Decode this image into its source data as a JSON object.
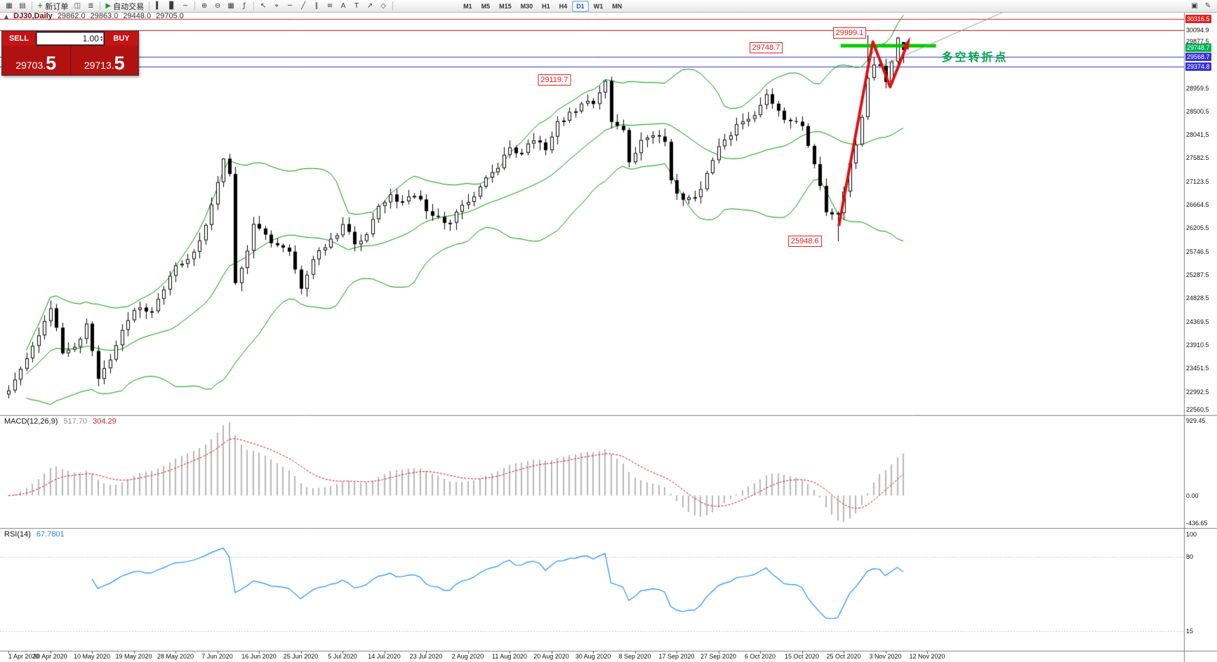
{
  "toolbar": {
    "groups": [
      {
        "name": "chart-group",
        "buttons": [
          {
            "name": "new-chart-icon",
            "glyph": "▦"
          },
          {
            "name": "chart-profiles-icon",
            "glyph": "▤"
          }
        ]
      },
      {
        "name": "order-group",
        "buttons": [
          {
            "name": "new-order-button",
            "glyph": "+",
            "glyph_color": "#1f9d1f",
            "label": "新订单"
          },
          {
            "name": "terminal-icon",
            "glyph": "◫"
          },
          {
            "name": "strategy-tester-icon",
            "glyph": "≣"
          }
        ]
      },
      {
        "name": "autotrade-group",
        "buttons": [
          {
            "name": "autotrading-button",
            "glyph": "▶",
            "glyph_color": "#1f9d1f",
            "label": "自动交易"
          }
        ]
      },
      {
        "name": "chart-type-group",
        "buttons": [
          {
            "name": "bar-chart-icon",
            "glyph": "▍"
          },
          {
            "name": "candlestick-chart-icon",
            "glyph": "▊"
          },
          {
            "name": "line-chart-icon",
            "glyph": "~"
          }
        ]
      },
      {
        "name": "zoom-group",
        "buttons": [
          {
            "name": "zoom-in-icon",
            "glyph": "⊕"
          },
          {
            "name": "zoom-out-icon",
            "glyph": "⊖"
          },
          {
            "name": "tile-windows-icon",
            "glyph": "▦"
          },
          {
            "name": "indicators-icon",
            "glyph": "ƒ"
          }
        ]
      },
      {
        "name": "drawing-group",
        "buttons": [
          {
            "name": "cursor-icon",
            "glyph": "↖"
          },
          {
            "name": "crosshair-icon",
            "glyph": "⌖"
          },
          {
            "name": "horizontal-line-icon",
            "glyph": "─"
          },
          {
            "name": "trendline-icon",
            "glyph": "╱"
          },
          {
            "name": "channel-icon",
            "glyph": "∥"
          },
          {
            "name": "fibonacci-icon",
            "glyph": "≡"
          },
          {
            "name": "text-icon",
            "glyph": "A"
          },
          {
            "name": "label-icon",
            "glyph": "T"
          },
          {
            "name": "arrow-tool-icon",
            "glyph": "↗"
          },
          {
            "name": "shapes-icon",
            "glyph": "◇"
          }
        ]
      }
    ],
    "timeframes": {
      "items": [
        "M1",
        "M5",
        "M15",
        "M30",
        "H1",
        "H4",
        "D1",
        "W1",
        "MN"
      ],
      "active": "D1"
    },
    "right_buttons": [
      {
        "name": "docking-icon",
        "glyph": "▣"
      },
      {
        "name": "edit-cursor-icon",
        "glyph": "✎"
      }
    ]
  },
  "chart_header": {
    "marker": "▲",
    "symbol": "DJ30,Daily",
    "open": "29862.0",
    "high": "29863.0",
    "low": "29448.0",
    "close": "29705.0"
  },
  "one_click": {
    "sell_label": "SELL",
    "buy_label": "BUY",
    "volume": "1.00",
    "up_glyph": "▴",
    "down_glyph": "▾",
    "sell_price_main": "29703.",
    "sell_price_big": "5",
    "buy_price_main": "29713.",
    "buy_price_big": "5"
  },
  "indicators": {
    "macd": {
      "name": "MACD(12,26,9)",
      "main_value": "517.70",
      "signal_value": "304.29",
      "axis_labels": [
        {
          "text": "929.45",
          "pos": "top"
        },
        {
          "text": "0.00",
          "pos": "zero"
        },
        {
          "text": "-436.65",
          "pos": "bottom"
        }
      ]
    },
    "rsi": {
      "name": "RSI(14)",
      "value": "67.7801",
      "axis_labels": [
        {
          "text": "100",
          "value": 100
        },
        {
          "text": "80",
          "value": 80
        },
        {
          "text": "15",
          "value": 15
        }
      ],
      "levels": [
        80,
        15
      ]
    }
  },
  "chart_data": {
    "type": "candlestick",
    "symbol": "DJ30",
    "timeframe": "Daily",
    "last_ohlc": {
      "open": 29862.0,
      "high": 29863.0,
      "low": 29448.0,
      "close": 29705.0
    },
    "price_axis": {
      "min": 22560.5,
      "max": 30316.5
    },
    "y_ticks": [
      {
        "text": "30316.5",
        "price": 30316.5,
        "type": "red"
      },
      {
        "text": "30094.9",
        "price": 30094.9,
        "type": "plain"
      },
      {
        "text": "29877.5",
        "price": 29877.5,
        "type": "plain"
      },
      {
        "text": "29748.7",
        "price": 29748.7,
        "type": "green"
      },
      {
        "text": "29568.7",
        "price": 29568.7,
        "type": "blue"
      },
      {
        "text": "29374.8",
        "price": 29374.8,
        "type": "blue"
      },
      {
        "text": "28959.5",
        "price": 28959.5,
        "type": "plain"
      },
      {
        "text": "28500.5",
        "price": 28500.5,
        "type": "plain"
      },
      {
        "text": "28041.5",
        "price": 28041.5,
        "type": "plain"
      },
      {
        "text": "27582.5",
        "price": 27582.5,
        "type": "plain"
      },
      {
        "text": "27123.5",
        "price": 27123.5,
        "type": "plain"
      },
      {
        "text": "26664.5",
        "price": 26664.5,
        "type": "plain"
      },
      {
        "text": "26205.5",
        "price": 26205.5,
        "type": "plain"
      },
      {
        "text": "25746.5",
        "price": 25746.5,
        "type": "plain"
      },
      {
        "text": "25287.5",
        "price": 25287.5,
        "type": "plain"
      },
      {
        "text": "24828.5",
        "price": 24828.5,
        "type": "plain"
      },
      {
        "text": "24369.5",
        "price": 24369.5,
        "type": "plain"
      },
      {
        "text": "23910.5",
        "price": 23910.5,
        "type": "plain"
      },
      {
        "text": "23451.5",
        "price": 23451.5,
        "type": "plain"
      },
      {
        "text": "22992.5",
        "price": 22992.5,
        "type": "plain"
      },
      {
        "text": "22560.5",
        "price": 22560.5,
        "type": "plain"
      }
    ],
    "x_ticks": [
      "1 Apr 2020",
      "30 Apr 2020",
      "10 May 2020",
      "19 May 2020",
      "28 May 2020",
      "7 Jun 2020",
      "16 Jun 2020",
      "25 Jun 2020",
      "5 Jul 2020",
      "14 Jul 2020",
      "23 Jul 2020",
      "2 Aug 2020",
      "11 Aug 2020",
      "20 Aug 2020",
      "30 Aug 2020",
      "8 Sep 2020",
      "17 Sep 2020",
      "27 Sep 2020",
      "6 Oct 2020",
      "15 Oct 2020",
      "25 Oct 2020",
      "3 Nov 2020",
      "12 Nov 2020"
    ],
    "bars_per_x_tick": 7,
    "seed": 11,
    "anchors": [
      [
        0,
        23019
      ],
      [
        3,
        23650
      ],
      [
        5,
        24100
      ],
      [
        7,
        24633
      ],
      [
        9,
        23750
      ],
      [
        11,
        23875
      ],
      [
        13,
        24331
      ],
      [
        15,
        23247
      ],
      [
        17,
        23625
      ],
      [
        19,
        24206
      ],
      [
        21,
        24597
      ],
      [
        24,
        24575
      ],
      [
        26,
        25001
      ],
      [
        28,
        25475
      ],
      [
        31,
        25742
      ],
      [
        33,
        26269
      ],
      [
        35,
        27110
      ],
      [
        36,
        27572
      ],
      [
        37,
        27272
      ],
      [
        38,
        25128
      ],
      [
        40,
        25763
      ],
      [
        41,
        26290
      ],
      [
        43,
        26080
      ],
      [
        45,
        25871
      ],
      [
        47,
        25745
      ],
      [
        49,
        25016
      ],
      [
        51,
        25596
      ],
      [
        53,
        25827
      ],
      [
        55,
        26067
      ],
      [
        56,
        26287
      ],
      [
        58,
        25890
      ],
      [
        60,
        26085
      ],
      [
        62,
        26642
      ],
      [
        64,
        26870
      ],
      [
        66,
        26734
      ],
      [
        68,
        26840
      ],
      [
        70,
        26539
      ],
      [
        72,
        26428
      ],
      [
        74,
        26313
      ],
      [
        76,
        26664
      ],
      [
        78,
        26828
      ],
      [
        80,
        27201
      ],
      [
        82,
        27386
      ],
      [
        84,
        27791
      ],
      [
        86,
        27686
      ],
      [
        88,
        27931
      ],
      [
        90,
        27739
      ],
      [
        92,
        28308
      ],
      [
        94,
        28492
      ],
      [
        96,
        28654
      ],
      [
        98,
        28645
      ],
      [
        100,
        29100
      ],
      [
        101,
        28293
      ],
      [
        103,
        28133
      ],
      [
        104,
        27501
      ],
      [
        106,
        27940
      ],
      [
        108,
        28032
      ],
      [
        110,
        27902
      ],
      [
        111,
        27148
      ],
      [
        113,
        26763
      ],
      [
        115,
        26815
      ],
      [
        117,
        27288
      ],
      [
        119,
        27816
      ],
      [
        121,
        28029
      ],
      [
        123,
        28304
      ],
      [
        125,
        28426
      ],
      [
        127,
        28838
      ],
      [
        129,
        28514
      ],
      [
        131,
        28308
      ],
      [
        133,
        28210
      ],
      [
        135,
        27463
      ],
      [
        137,
        26520
      ],
      [
        139,
        26502
      ],
      [
        140,
        26925
      ],
      [
        141,
        27480
      ],
      [
        142,
        27848
      ],
      [
        143,
        28390
      ],
      [
        144,
        29158
      ],
      [
        145,
        29420
      ],
      [
        146,
        29397
      ],
      [
        147,
        29080
      ],
      [
        148,
        29480
      ],
      [
        149,
        29950
      ],
      [
        150,
        29705
      ]
    ],
    "overrides": [
      {
        "day": 36,
        "high": 27580.0
      },
      {
        "day": 100,
        "high": 29119.7
      },
      {
        "day": 139,
        "low": 25948.6
      },
      {
        "day": 144,
        "high": 29999.1
      },
      {
        "day": 149,
        "high": 29964.0
      },
      {
        "day": 150,
        "open": 29862.0,
        "high": 29863.0,
        "low": 29448.0,
        "close": 29705.0
      }
    ],
    "bollinger": {
      "period": 20,
      "deviation": 2,
      "color": "#009900"
    },
    "h_lines": [
      {
        "price": 30316.5,
        "color": "#cc2020",
        "width": 1
      },
      {
        "price": 30094.9,
        "color": "#a01818",
        "width": 1
      },
      {
        "price": 29568.7,
        "color": "#3333c4",
        "width": 1
      },
      {
        "price": 29374.8,
        "color": "#3333c4",
        "width": 1
      }
    ],
    "objects": {
      "thick_line": {
        "day_from": 139.5,
        "day_to": 155.5,
        "price": 29790,
        "color": "#00cc00",
        "width": 5
      },
      "trendline": {
        "from": [
          146,
          29380
        ],
        "to": [
          172,
          30720
        ],
        "color": "#9a9a9a",
        "width": 1
      },
      "zigzag": {
        "points": [
          [
            139.2,
            26252
          ],
          [
            144.9,
            29870
          ],
          [
            147.8,
            28980
          ],
          [
            150.6,
            29800
          ]
        ],
        "color": "#dd1111",
        "width": 4
      }
    },
    "annotations": {
      "price_boxes": [
        {
          "text": "29999.1",
          "day": 141,
          "price": 30040
        },
        {
          "text": "29748.7",
          "day": 127,
          "price": 29745
        },
        {
          "text": "29119.7",
          "day": 91.5,
          "price": 29120
        },
        {
          "text": "25948.6",
          "day": 133.5,
          "price": 25945
        }
      ],
      "note": {
        "text": "多空转折点",
        "day": 162,
        "price": 29590,
        "color": "#00a550"
      }
    }
  }
}
